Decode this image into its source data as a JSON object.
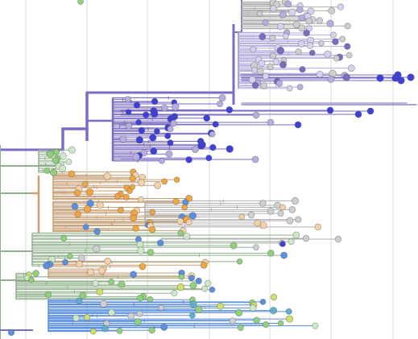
{
  "view": {
    "background": "#ffffff",
    "gridline_color": "#d9d9d9",
    "gridline_count": 7
  },
  "clade_colors": {
    "deep_blue": "#3f3fd9",
    "violet": "#7b6cc4",
    "lavender": "#b7aee0",
    "pale_lavender": "#d7d2ee",
    "orange": "#f1a640",
    "peach": "#f6d2a8",
    "tan_branch": "#c9a27a",
    "green": "#8fd17d",
    "pale_green": "#cfe8c8",
    "sage_branch": "#8fb08a",
    "sky_blue": "#5b8fe0",
    "teal": "#5fb0cf",
    "lime": "#cde06a",
    "grey_branch": "#b0b0b0",
    "grey_node": "#cfcfcf"
  },
  "clades": [
    {
      "name": "violet-clade",
      "color_key": "violet"
    },
    {
      "name": "deep-blue-clade",
      "color_key": "deep_blue"
    },
    {
      "name": "orange-clade",
      "color_key": "orange"
    },
    {
      "name": "green-clade",
      "color_key": "green"
    },
    {
      "name": "blue-teal-clade",
      "color_key": "sky_blue"
    }
  ]
}
